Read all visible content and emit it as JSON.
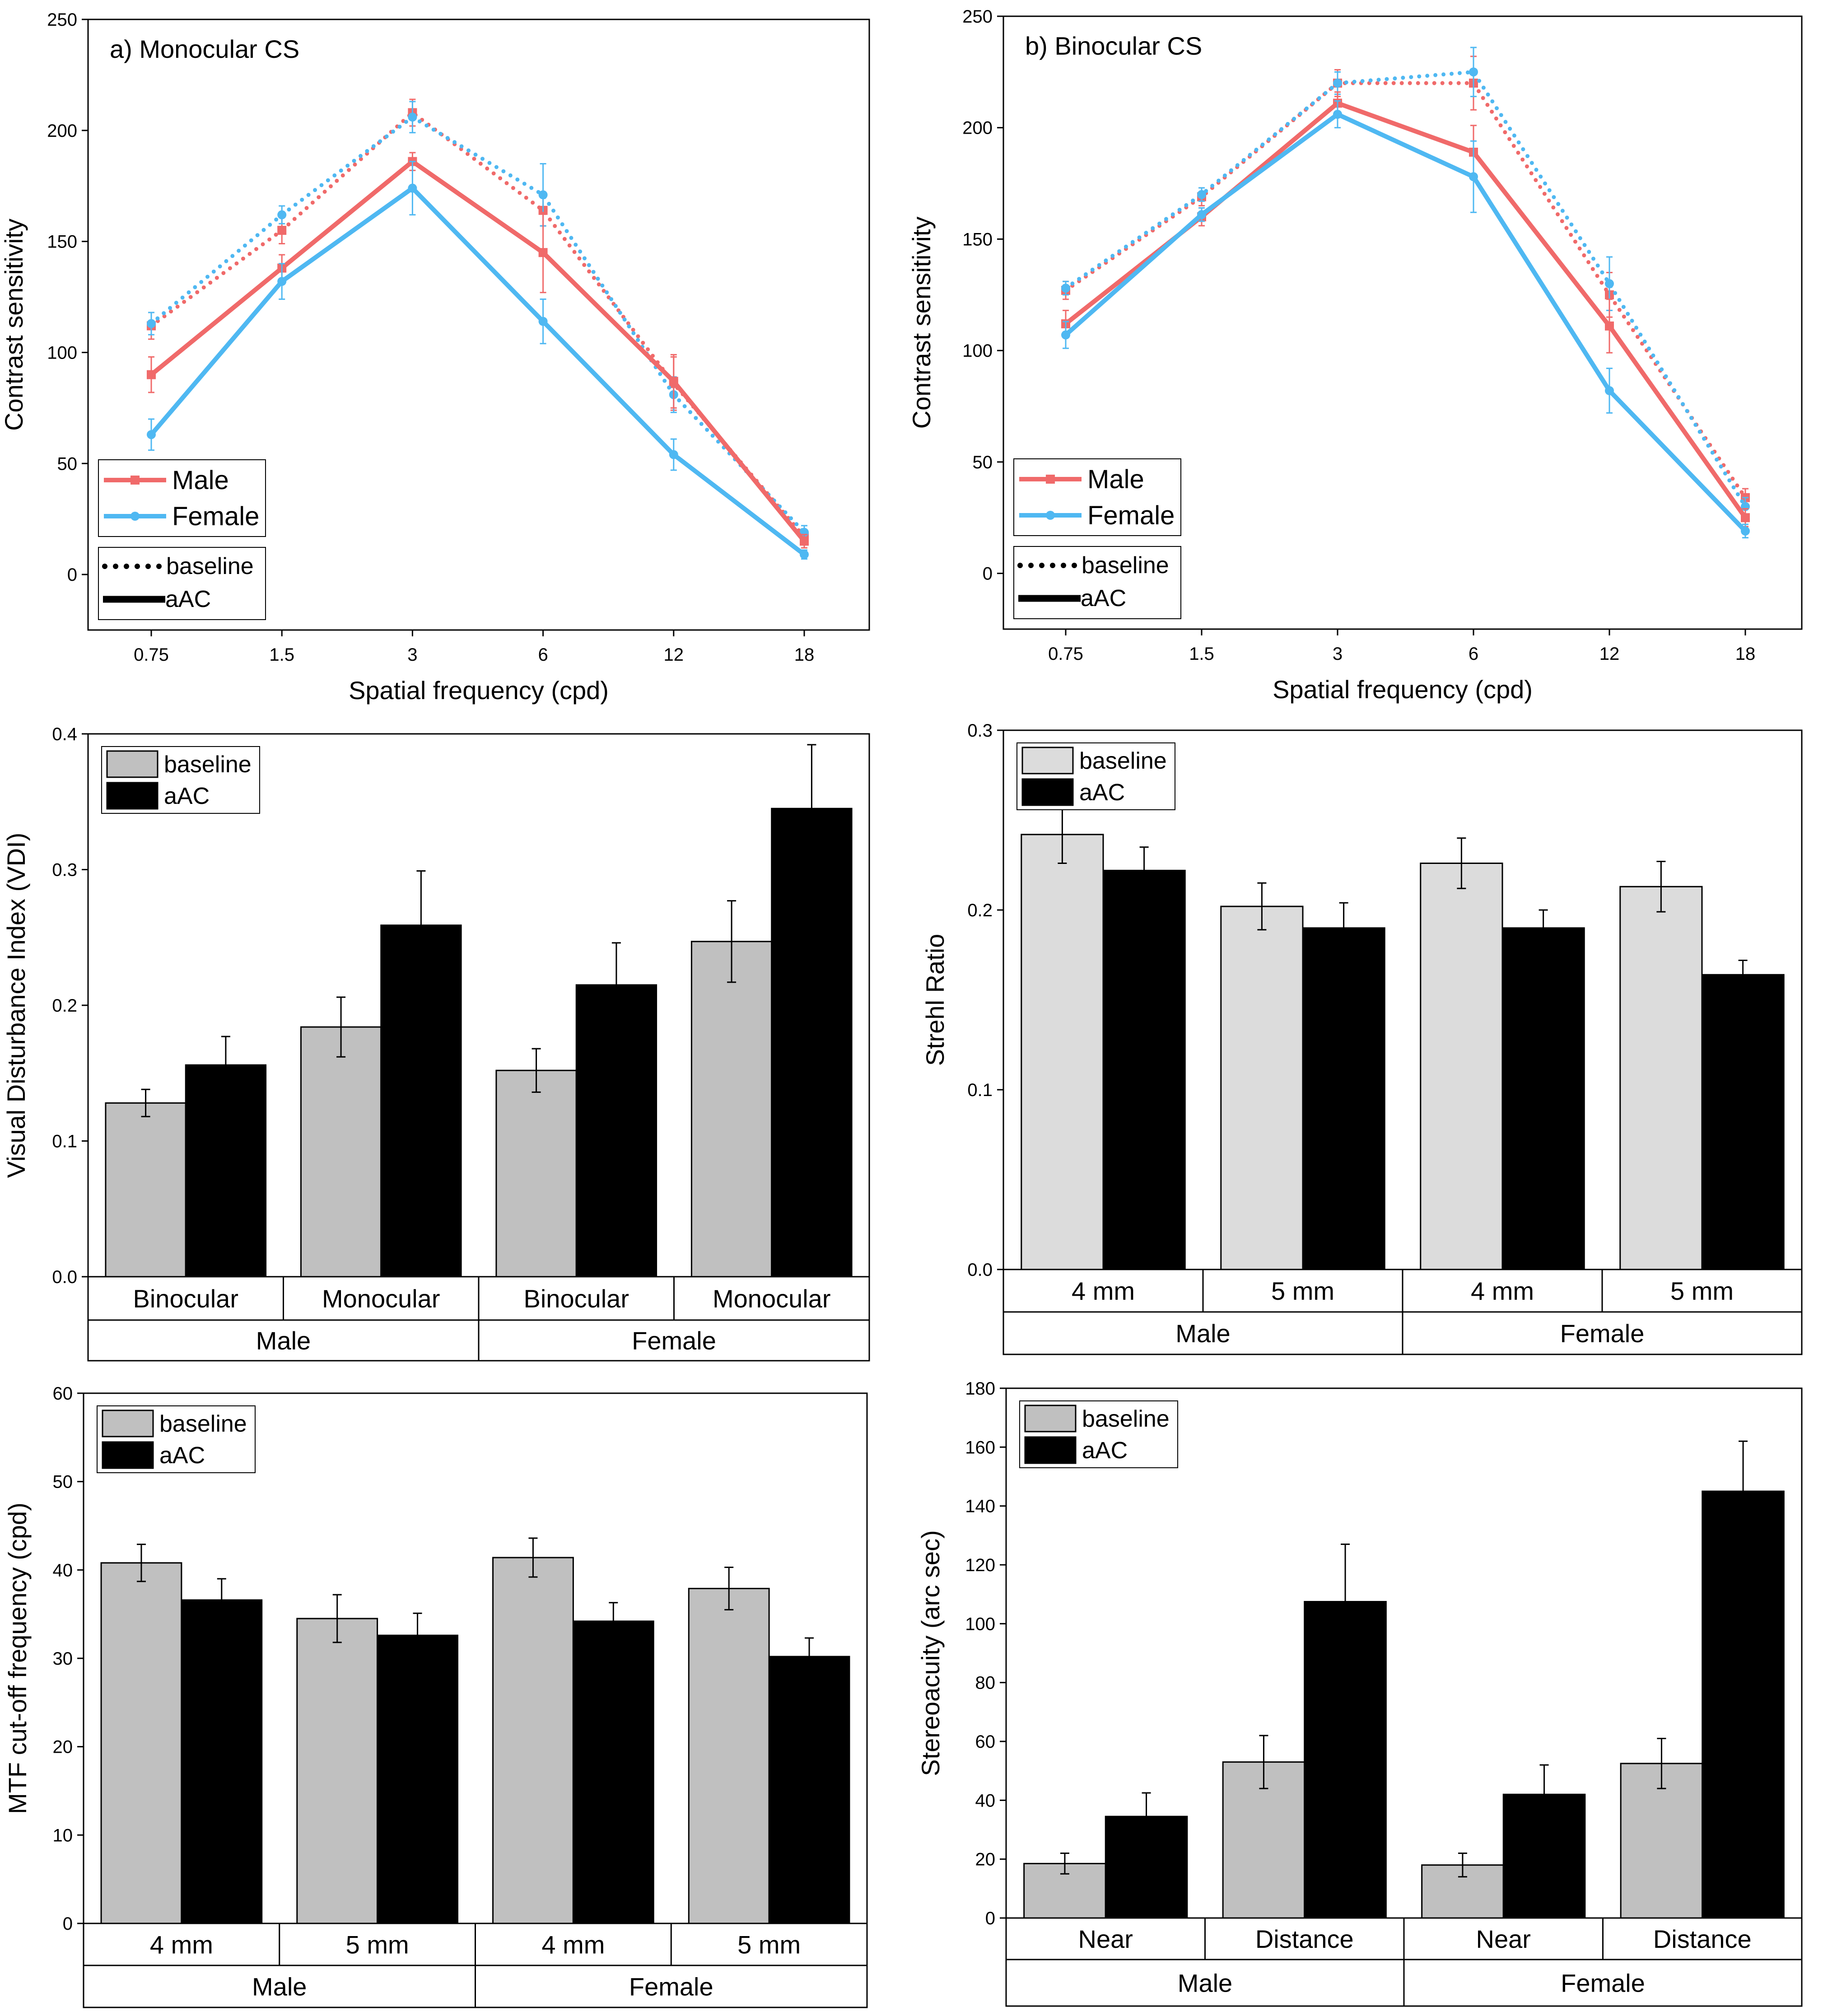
{
  "figure": {
    "colors": {
      "male": "#f06a6a",
      "female": "#4fb8f2",
      "baseline_bar_dark": "#c0c0c0",
      "baseline_bar_light": "#dcdcdc",
      "aac_bar": "#3a3a3a"
    }
  },
  "chart_data": [
    {
      "id": "a",
      "type": "line",
      "title": "a) Monocular CS",
      "xlabel": "Spatial frequency (cpd)",
      "ylabel": "Contrast sensitivity",
      "categories": [
        "0.75",
        "1.5",
        "3",
        "6",
        "12",
        "18"
      ],
      "yticks": [
        "0",
        "50",
        "100",
        "150",
        "200",
        "250"
      ],
      "ylim": [
        -25,
        250
      ],
      "legend": {
        "placement": "bottom-left",
        "male": "Male",
        "female": "Female",
        "baseline": "baseline",
        "aac": "aAC"
      },
      "series": [
        {
          "name": "Male",
          "condition": "baseline",
          "values": [
            112,
            155,
            208,
            164,
            86,
            17
          ],
          "errors": [
            6,
            6,
            6,
            7,
            12,
            3
          ]
        },
        {
          "name": "Female",
          "condition": "baseline",
          "values": [
            113,
            162,
            206,
            171,
            81,
            19
          ],
          "errors": [
            5,
            4,
            7,
            14,
            8,
            3
          ]
        },
        {
          "name": "Male",
          "condition": "aAC",
          "values": [
            90,
            138,
            186,
            145,
            87,
            15
          ],
          "errors": [
            8,
            6,
            4,
            18,
            12,
            3
          ]
        },
        {
          "name": "Female",
          "condition": "aAC",
          "values": [
            63,
            132,
            174,
            114,
            54,
            9
          ],
          "errors": [
            7,
            8,
            12,
            10,
            7,
            2
          ]
        }
      ]
    },
    {
      "id": "b",
      "type": "line",
      "title": "b) Binocular CS",
      "xlabel": "Spatial frequency (cpd)",
      "ylabel": "Contrast sensitivity",
      "categories": [
        "0.75",
        "1.5",
        "3",
        "6",
        "12",
        "18"
      ],
      "yticks": [
        "0",
        "50",
        "100",
        "150",
        "200",
        "250"
      ],
      "ylim": [
        -25,
        250
      ],
      "legend": {
        "placement": "bottom-left",
        "male": "Male",
        "female": "Female",
        "baseline": "baseline",
        "aac": "aAC"
      },
      "series": [
        {
          "name": "Male",
          "condition": "baseline",
          "values": [
            127,
            169,
            220,
            220,
            125,
            34
          ],
          "errors": [
            4,
            4,
            6,
            12,
            10,
            4
          ]
        },
        {
          "name": "Female",
          "condition": "baseline",
          "values": [
            128,
            170,
            220,
            225,
            130,
            30
          ],
          "errors": [
            3,
            3,
            5,
            11,
            12,
            4
          ]
        },
        {
          "name": "Male",
          "condition": "aAC",
          "values": [
            112,
            160,
            211,
            189,
            111,
            25
          ],
          "errors": [
            6,
            4,
            5,
            12,
            12,
            4
          ]
        },
        {
          "name": "Female",
          "condition": "aAC",
          "values": [
            107,
            161,
            206,
            178,
            82,
            19
          ],
          "errors": [
            6,
            3,
            6,
            16,
            10,
            3
          ]
        }
      ]
    },
    {
      "id": "vdi",
      "type": "bar",
      "xlabel": "",
      "ylabel": "Visual Disturbance Index (VDI)",
      "ylim": [
        0,
        0.4
      ],
      "yticks": [
        "0.0",
        "0.1",
        "0.2",
        "0.3",
        "0.4"
      ],
      "categories": [
        "Binocular",
        "Monocular",
        "Binocular",
        "Monocular"
      ],
      "groups": [
        "Male",
        "Female"
      ],
      "legend": {
        "placement": "top-left",
        "baseline": "baseline",
        "aac": "aAC"
      },
      "series": [
        {
          "name": "baseline",
          "values": [
            0.128,
            0.184,
            0.152,
            0.247
          ],
          "errors": [
            0.01,
            0.022,
            0.016,
            0.03
          ]
        },
        {
          "name": "aAC",
          "values": [
            0.156,
            0.259,
            0.215,
            0.345
          ],
          "errors": [
            0.021,
            0.04,
            0.031,
            0.047
          ]
        }
      ]
    },
    {
      "id": "strehl",
      "type": "bar",
      "xlabel": "",
      "ylabel": "Strehl Ratio",
      "ylim": [
        0,
        0.3
      ],
      "yticks": [
        "0.0",
        "0.1",
        "0.2",
        "0.3"
      ],
      "categories": [
        "4 mm",
        "5 mm",
        "4 mm",
        "5 mm"
      ],
      "groups": [
        "Male",
        "Female"
      ],
      "legend": {
        "placement": "top-left",
        "baseline": "baseline",
        "aac": "aAC"
      },
      "series": [
        {
          "name": "baseline",
          "values": [
            0.242,
            0.202,
            0.226,
            0.213
          ],
          "errors": [
            0.016,
            0.013,
            0.014,
            0.014
          ]
        },
        {
          "name": "aAC",
          "values": [
            0.222,
            0.19,
            0.19,
            0.164
          ],
          "errors": [
            0.013,
            0.014,
            0.01,
            0.008
          ]
        }
      ]
    },
    {
      "id": "mtf",
      "type": "bar",
      "xlabel": "",
      "ylabel": "MTF cut-off frequency (cpd)",
      "ylim": [
        0,
        60
      ],
      "yticks": [
        "0",
        "10",
        "20",
        "30",
        "40",
        "50",
        "60"
      ],
      "categories": [
        "4 mm",
        "5 mm",
        "4 mm",
        "5 mm"
      ],
      "groups": [
        "Male",
        "Female"
      ],
      "legend": {
        "placement": "top-left",
        "baseline": "baseline",
        "aac": "aAC"
      },
      "series": [
        {
          "name": "baseline",
          "values": [
            40.8,
            34.5,
            41.4,
            37.9
          ],
          "errors": [
            2.1,
            2.7,
            2.2,
            2.4
          ]
        },
        {
          "name": "aAC",
          "values": [
            36.6,
            32.6,
            34.2,
            30.2
          ],
          "errors": [
            2.4,
            2.5,
            2.1,
            2.1
          ]
        }
      ]
    },
    {
      "id": "stereo",
      "type": "bar",
      "xlabel": "",
      "ylabel": "Stereoacuity (arc sec)",
      "ylim": [
        0,
        180
      ],
      "yticks": [
        "0",
        "20",
        "40",
        "60",
        "80",
        "100",
        "120",
        "140",
        "160",
        "180"
      ],
      "categories": [
        "Near",
        "Distance",
        "Near",
        "Distance"
      ],
      "groups": [
        "Male",
        "Female"
      ],
      "legend": {
        "placement": "top-left",
        "baseline": "baseline",
        "aac": "aAC"
      },
      "series": [
        {
          "name": "baseline",
          "values": [
            18.5,
            53,
            18,
            52.5
          ],
          "errors": [
            3.5,
            9,
            4,
            8.5
          ]
        },
        {
          "name": "aAC",
          "values": [
            34.5,
            107.5,
            42,
            145
          ],
          "errors": [
            8,
            19.5,
            10,
            17
          ]
        }
      ]
    }
  ]
}
